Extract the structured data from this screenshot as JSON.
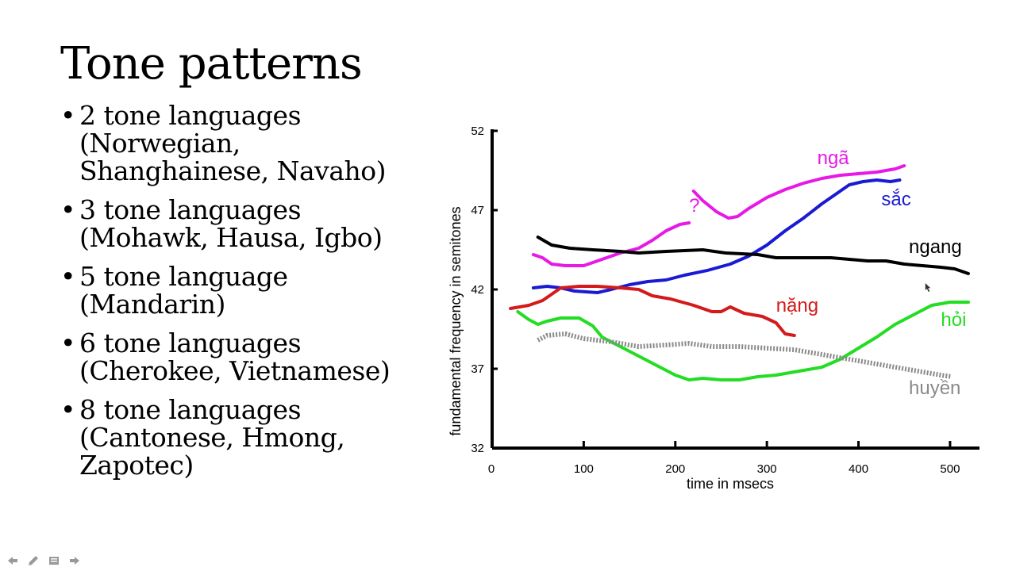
{
  "slide": {
    "title": "Tone patterns",
    "bullets": [
      {
        "lines": [
          "2 tone languages",
          "(Norwegian,",
          "Shanghainese, Navaho)"
        ]
      },
      {
        "lines": [
          "3 tone languages",
          "(Mohawk, Hausa, Igbo)"
        ]
      },
      {
        "lines": [
          "5 tone language",
          "(Mandarin)"
        ]
      },
      {
        "lines": [
          "6 tone languages",
          "(Cherokee, Vietnamese)"
        ]
      },
      {
        "lines": [
          "8 tone languages",
          "(Cantonese, Hmong,",
          "Zapotec)"
        ]
      }
    ],
    "bullet_char": "•"
  },
  "nav": {
    "icons": [
      "arrow-left-icon",
      "pencil-icon",
      "menu-icon",
      "arrow-right-icon"
    ]
  },
  "chart_data": {
    "type": "line",
    "xlabel": "time in msecs",
    "ylabel": "fundamental frequency in semitones",
    "xlim": [
      0,
      520
    ],
    "ylim": [
      32,
      52
    ],
    "xticks": [
      0,
      100,
      200,
      300,
      400,
      500
    ],
    "yticks": [
      32,
      37,
      42,
      47,
      52
    ],
    "grid": false,
    "series": [
      {
        "name": "ngã",
        "color": "#e619e6",
        "style": "solid",
        "segments": [
          [
            [
              45,
              44.2
            ],
            [
              55,
              44.0
            ],
            [
              65,
              43.6
            ],
            [
              80,
              43.5
            ],
            [
              100,
              43.5
            ],
            [
              120,
              43.9
            ],
            [
              140,
              44.3
            ],
            [
              160,
              44.6
            ],
            [
              175,
              45.1
            ],
            [
              190,
              45.7
            ],
            [
              205,
              46.1
            ],
            [
              215,
              46.2
            ]
          ],
          [
            [
              220,
              48.2
            ],
            [
              230,
              47.6
            ],
            [
              245,
              46.9
            ],
            [
              258,
              46.5
            ],
            [
              268,
              46.6
            ],
            [
              280,
              47.1
            ],
            [
              300,
              47.8
            ],
            [
              320,
              48.3
            ],
            [
              340,
              48.7
            ],
            [
              360,
              49.0
            ],
            [
              380,
              49.2
            ],
            [
              400,
              49.3
            ],
            [
              420,
              49.4
            ],
            [
              440,
              49.6
            ],
            [
              450,
              49.8
            ]
          ]
        ]
      },
      {
        "name": "sắc",
        "color": "#1a1ad4",
        "style": "solid",
        "segments": [
          [
            [
              45,
              42.1
            ],
            [
              60,
              42.2
            ],
            [
              75,
              42.1
            ],
            [
              90,
              41.9
            ],
            [
              115,
              41.8
            ],
            [
              130,
              42.0
            ],
            [
              150,
              42.3
            ],
            [
              170,
              42.5
            ],
            [
              190,
              42.6
            ],
            [
              210,
              42.9
            ],
            [
              235,
              43.2
            ],
            [
              260,
              43.6
            ],
            [
              280,
              44.1
            ],
            [
              300,
              44.8
            ],
            [
              320,
              45.7
            ],
            [
              340,
              46.5
            ],
            [
              360,
              47.4
            ],
            [
              380,
              48.2
            ],
            [
              390,
              48.6
            ],
            [
              405,
              48.8
            ],
            [
              420,
              48.9
            ],
            [
              435,
              48.8
            ],
            [
              445,
              48.9
            ]
          ]
        ]
      },
      {
        "name": "ngang",
        "color": "#000000",
        "style": "solid",
        "segments": [
          [
            [
              50,
              45.3
            ],
            [
              65,
              44.8
            ],
            [
              85,
              44.6
            ],
            [
              110,
              44.5
            ],
            [
              140,
              44.4
            ],
            [
              160,
              44.3
            ],
            [
              190,
              44.4
            ],
            [
              230,
              44.5
            ],
            [
              255,
              44.3
            ],
            [
              290,
              44.2
            ],
            [
              310,
              44.0
            ],
            [
              340,
              44.0
            ],
            [
              370,
              44.0
            ],
            [
              390,
              43.9
            ],
            [
              410,
              43.8
            ],
            [
              430,
              43.8
            ],
            [
              450,
              43.6
            ],
            [
              470,
              43.5
            ],
            [
              490,
              43.4
            ],
            [
              505,
              43.3
            ],
            [
              520,
              43.0
            ]
          ]
        ]
      },
      {
        "name": "nặng",
        "color": "#d41a1a",
        "style": "solid",
        "segments": [
          [
            [
              20,
              40.8
            ],
            [
              30,
              40.9
            ],
            [
              40,
              41.0
            ],
            [
              55,
              41.3
            ],
            [
              65,
              41.7
            ],
            [
              75,
              42.1
            ],
            [
              95,
              42.2
            ],
            [
              115,
              42.2
            ],
            [
              140,
              42.1
            ],
            [
              160,
              42.0
            ],
            [
              175,
              41.6
            ],
            [
              195,
              41.4
            ],
            [
              220,
              41.0
            ],
            [
              240,
              40.6
            ],
            [
              250,
              40.6
            ],
            [
              260,
              40.9
            ],
            [
              275,
              40.5
            ],
            [
              295,
              40.3
            ],
            [
              310,
              39.9
            ],
            [
              320,
              39.2
            ],
            [
              330,
              39.1
            ]
          ]
        ]
      },
      {
        "name": "hỏi",
        "color": "#22dd22",
        "style": "solid",
        "segments": [
          [
            [
              28,
              40.6
            ],
            [
              40,
              40.1
            ],
            [
              50,
              39.8
            ],
            [
              60,
              40.0
            ],
            [
              75,
              40.2
            ],
            [
              95,
              40.2
            ],
            [
              110,
              39.7
            ],
            [
              120,
              39.0
            ],
            [
              140,
              38.4
            ],
            [
              160,
              37.8
            ],
            [
              180,
              37.2
            ],
            [
              200,
              36.6
            ],
            [
              215,
              36.3
            ],
            [
              230,
              36.4
            ],
            [
              250,
              36.3
            ],
            [
              270,
              36.3
            ],
            [
              290,
              36.5
            ],
            [
              310,
              36.6
            ],
            [
              340,
              36.9
            ],
            [
              360,
              37.1
            ],
            [
              380,
              37.6
            ],
            [
              400,
              38.3
            ],
            [
              420,
              39.0
            ],
            [
              440,
              39.8
            ],
            [
              460,
              40.4
            ],
            [
              480,
              41.0
            ],
            [
              500,
              41.2
            ],
            [
              520,
              41.2
            ]
          ]
        ]
      },
      {
        "name": "huyền",
        "color": "#8a8a8a",
        "style": "dotted",
        "segments": [
          [
            [
              50,
              38.8
            ],
            [
              60,
              39.1
            ],
            [
              80,
              39.2
            ],
            [
              100,
              38.9
            ],
            [
              130,
              38.7
            ],
            [
              160,
              38.4
            ],
            [
              190,
              38.5
            ],
            [
              215,
              38.6
            ],
            [
              240,
              38.4
            ],
            [
              270,
              38.4
            ],
            [
              300,
              38.3
            ],
            [
              330,
              38.2
            ],
            [
              360,
              37.9
            ],
            [
              390,
              37.6
            ],
            [
              420,
              37.3
            ],
            [
              450,
              37.0
            ],
            [
              470,
              36.8
            ],
            [
              490,
              36.6
            ],
            [
              502,
              36.5
            ]
          ]
        ]
      },
      {
        "name": "?",
        "color": "#e619e6",
        "style": "label"
      }
    ],
    "labels": [
      {
        "text": "ngã",
        "x": 355,
        "y": 49.9,
        "color": "#e619e6"
      },
      {
        "text": "sắc",
        "x": 425,
        "y": 47.3,
        "color": "#1a1ad4"
      },
      {
        "text": "ngang",
        "x": 455,
        "y": 44.3,
        "color": "#000000"
      },
      {
        "text": "nặng",
        "x": 310,
        "y": 40.6,
        "color": "#d41a1a"
      },
      {
        "text": "hỏi",
        "x": 490,
        "y": 39.7,
        "color": "#22dd22"
      },
      {
        "text": "huyền",
        "x": 455,
        "y": 35.4,
        "color": "#8a8a8a"
      },
      {
        "text": "?",
        "x": 215,
        "y": 46.9,
        "color": "#e619e6"
      }
    ]
  }
}
